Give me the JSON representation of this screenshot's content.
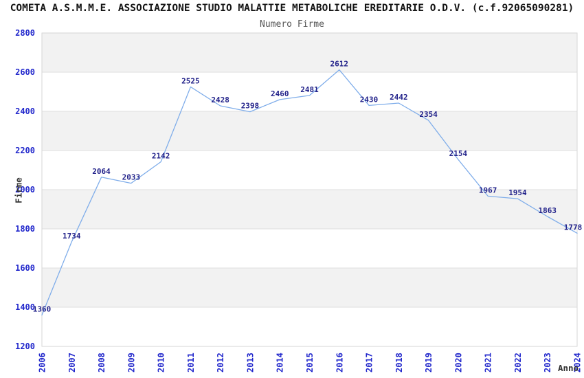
{
  "header": {
    "title": "COMETA A.S.M.M.E. ASSOCIAZIONE STUDIO MALATTIE METABOLICHE EREDITARIE O.D.V. (c.f.92065090281)",
    "subtitle": "Numero Firme"
  },
  "chart_data": {
    "type": "line",
    "title": "Numero Firme",
    "xlabel": "Anno",
    "ylabel": "Firme",
    "categories": [
      "2006",
      "2007",
      "2008",
      "2009",
      "2010",
      "2011",
      "2012",
      "2013",
      "2014",
      "2015",
      "2016",
      "2017",
      "2018",
      "2019",
      "2020",
      "2021",
      "2022",
      "2023",
      "2024"
    ],
    "values": [
      1360,
      1734,
      2064,
      2033,
      2142,
      2525,
      2428,
      2398,
      2460,
      2481,
      2612,
      2430,
      2442,
      2354,
      2154,
      1967,
      1954,
      1863,
      1778
    ],
    "ylim": [
      1200,
      2800
    ],
    "yticks": [
      1200,
      1400,
      1600,
      1800,
      2000,
      2200,
      2400,
      2600,
      2800
    ],
    "grid": true,
    "legend_position": "none",
    "show_point_labels": true,
    "band_fill_alternating": true,
    "colors": {
      "line": "#7fadea",
      "point_label": "#22228a",
      "tick_label": "#2228cc",
      "band": "#f2f2f2",
      "gridline": "#dedede",
      "plot_border": "#d6d6d6",
      "title": "#141414",
      "subtitle": "#555555",
      "axis_title": "#333333",
      "background": "#ffffff"
    }
  }
}
